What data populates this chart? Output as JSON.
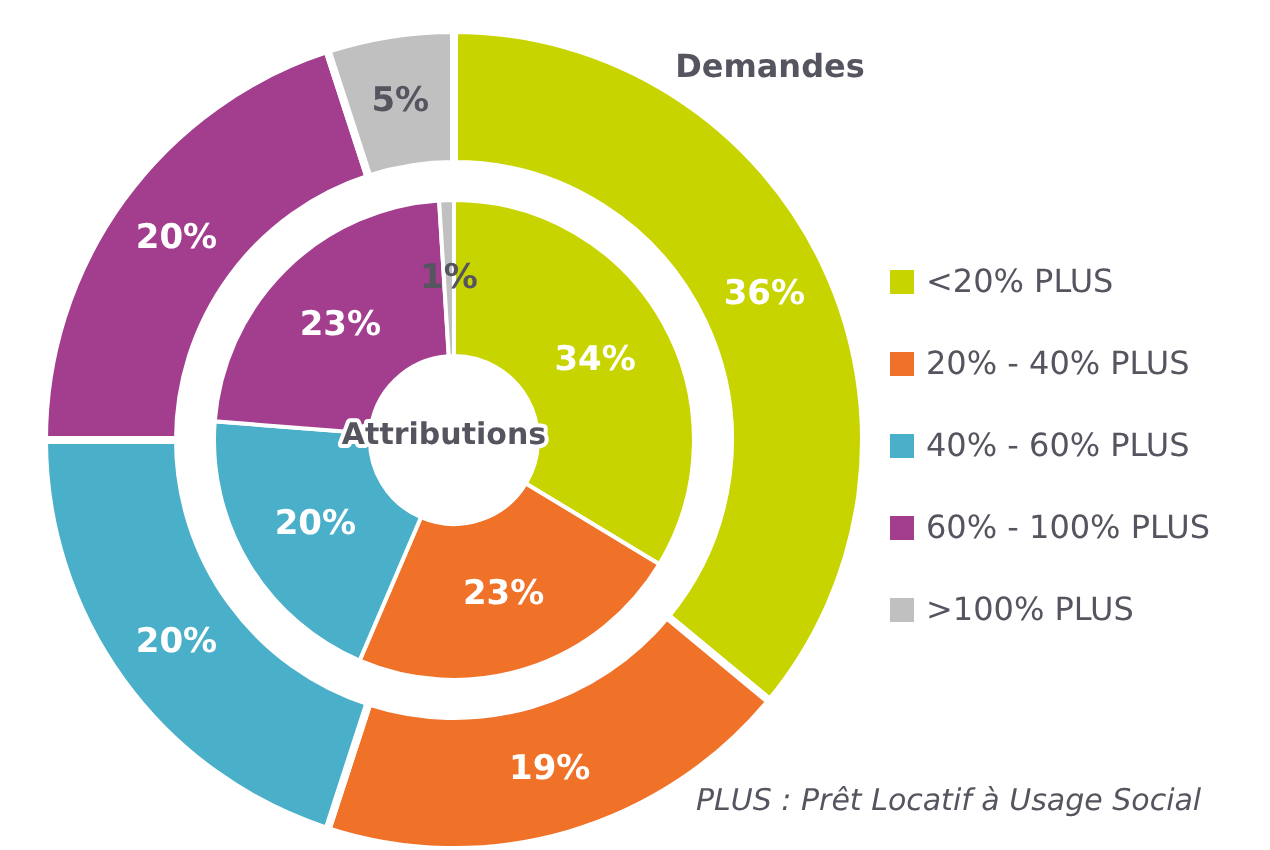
{
  "chart_data": {
    "type": "donut",
    "categories": [
      "<20% PLUS",
      "20% - 40% PLUS",
      "40% - 60% PLUS",
      "60% - 100% PLUS",
      ">100% PLUS"
    ],
    "colors": [
      "#c8d400",
      "#f07229",
      "#4aafc8",
      "#a23e8d",
      "#c0c0c0"
    ],
    "series": [
      {
        "name": "Attributions",
        "values": [
          34,
          23,
          20,
          23,
          1
        ],
        "value_labels": [
          "34%",
          "23%",
          "20%",
          "23%",
          "1%"
        ]
      },
      {
        "name": "Demandes",
        "values": [
          36,
          19,
          20,
          20,
          5
        ],
        "value_labels": [
          "36%",
          "19%",
          "20%",
          "20%",
          "5%"
        ]
      }
    ],
    "legend": "right",
    "annotations": [
      "PLUS : Prêt Locatif à Usage Social"
    ]
  }
}
